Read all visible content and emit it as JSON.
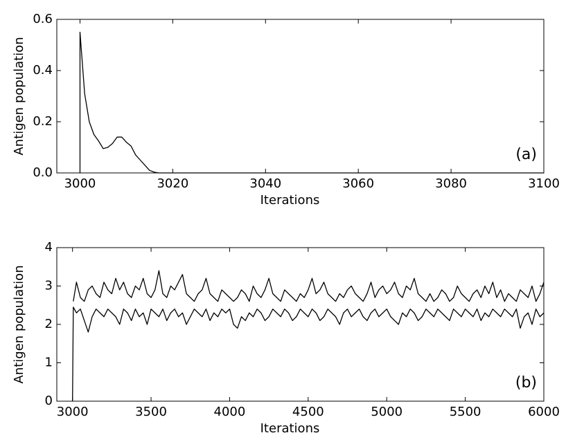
{
  "chart_data": [
    {
      "type": "line",
      "xlabel": "Iterations",
      "ylabel": "Antigen population",
      "annotation": "(a)",
      "x": [
        3000,
        3000,
        3001,
        3002,
        3003,
        3004,
        3005,
        3006,
        3007,
        3008,
        3009,
        3010,
        3011,
        3012,
        3013,
        3014,
        3015,
        3016,
        3017,
        3100
      ],
      "series": [
        {
          "color": "#000000",
          "values": [
            0,
            0.55,
            0.31,
            0.2,
            0.15,
            0.125,
            0.095,
            0.1,
            0.115,
            0.14,
            0.14,
            0.12,
            0.105,
            0.07,
            0.05,
            0.03,
            0.01,
            0.003,
            0,
            0
          ]
        }
      ],
      "xlim": [
        2995,
        3100
      ],
      "xticks": [
        3000,
        3020,
        3040,
        3060,
        3080,
        3100
      ],
      "ylim": [
        0,
        0.6
      ],
      "yticks": [
        {
          "value": 0,
          "label": "0.0"
        },
        0.2,
        0.4,
        0.6
      ]
    },
    {
      "type": "line",
      "xlabel": "Iterations",
      "ylabel": "Antigen population",
      "annotation": "(b)",
      "x": [
        3000,
        3005,
        3025,
        3050,
        3075,
        3100,
        3125,
        3150,
        3175,
        3200,
        3225,
        3250,
        3275,
        3300,
        3325,
        3350,
        3375,
        3400,
        3425,
        3450,
        3475,
        3500,
        3525,
        3550,
        3575,
        3600,
        3625,
        3650,
        3675,
        3700,
        3725,
        3750,
        3775,
        3800,
        3825,
        3850,
        3875,
        3900,
        3925,
        3950,
        3975,
        4000,
        4025,
        4050,
        4075,
        4100,
        4125,
        4150,
        4175,
        4200,
        4225,
        4250,
        4275,
        4300,
        4325,
        4350,
        4375,
        4400,
        4425,
        4450,
        4475,
        4500,
        4525,
        4550,
        4575,
        4600,
        4625,
        4650,
        4675,
        4700,
        4725,
        4750,
        4775,
        4800,
        4825,
        4850,
        4875,
        4900,
        4925,
        4950,
        4975,
        5000,
        5025,
        5050,
        5075,
        5100,
        5125,
        5150,
        5175,
        5200,
        5225,
        5250,
        5275,
        5300,
        5325,
        5350,
        5375,
        5400,
        5425,
        5450,
        5475,
        5500,
        5525,
        5550,
        5575,
        5600,
        5625,
        5650,
        5675,
        5700,
        5725,
        5750,
        5775,
        5800,
        5825,
        5850,
        5875,
        5900,
        5925,
        5950,
        5975,
        6000
      ],
      "series": [
        {
          "color": "#000000",
          "values": [
            null,
            2.6,
            3.1,
            2.7,
            2.6,
            2.9,
            3.0,
            2.8,
            2.7,
            3.1,
            2.9,
            2.8,
            3.2,
            2.9,
            3.1,
            2.8,
            2.7,
            3.0,
            2.9,
            3.2,
            2.8,
            2.7,
            2.9,
            3.4,
            2.8,
            2.7,
            3.0,
            2.9,
            3.1,
            3.3,
            2.8,
            2.7,
            2.6,
            2.8,
            2.9,
            3.2,
            2.8,
            2.7,
            2.6,
            2.9,
            2.8,
            2.7,
            2.6,
            2.7,
            2.9,
            2.8,
            2.6,
            3.0,
            2.8,
            2.7,
            2.9,
            3.2,
            2.8,
            2.7,
            2.6,
            2.9,
            2.8,
            2.7,
            2.6,
            2.8,
            2.7,
            2.9,
            3.2,
            2.8,
            2.9,
            3.1,
            2.8,
            2.7,
            2.6,
            2.8,
            2.7,
            2.9,
            3.0,
            2.8,
            2.7,
            2.6,
            2.8,
            3.1,
            2.7,
            2.9,
            3.0,
            2.8,
            2.9,
            3.1,
            2.8,
            2.7,
            3.0,
            2.9,
            3.2,
            2.8,
            2.7,
            2.6,
            2.8,
            2.6,
            2.7,
            2.9,
            2.8,
            2.6,
            2.7,
            3.0,
            2.8,
            2.7,
            2.6,
            2.8,
            2.9,
            2.7,
            3.0,
            2.8,
            3.1,
            2.7,
            2.9,
            2.6,
            2.8,
            2.7,
            2.6,
            2.9,
            2.8,
            2.7,
            3.0,
            2.6,
            2.8,
            3.1
          ]
        },
        {
          "color": "#000000",
          "values": [
            0,
            2.45,
            2.3,
            2.4,
            2.1,
            1.8,
            2.2,
            2.4,
            2.3,
            2.2,
            2.4,
            2.3,
            2.2,
            2.0,
            2.4,
            2.3,
            2.1,
            2.4,
            2.2,
            2.3,
            2.0,
            2.4,
            2.3,
            2.2,
            2.4,
            2.1,
            2.3,
            2.4,
            2.2,
            2.3,
            2.0,
            2.2,
            2.4,
            2.3,
            2.2,
            2.4,
            2.1,
            2.3,
            2.2,
            2.4,
            2.3,
            2.4,
            2.0,
            1.9,
            2.2,
            2.1,
            2.3,
            2.2,
            2.4,
            2.3,
            2.1,
            2.2,
            2.4,
            2.3,
            2.2,
            2.4,
            2.3,
            2.1,
            2.2,
            2.4,
            2.3,
            2.2,
            2.4,
            2.3,
            2.1,
            2.2,
            2.4,
            2.3,
            2.2,
            2.0,
            2.3,
            2.4,
            2.2,
            2.3,
            2.4,
            2.2,
            2.1,
            2.3,
            2.4,
            2.2,
            2.3,
            2.4,
            2.2,
            2.1,
            2.0,
            2.3,
            2.2,
            2.4,
            2.3,
            2.1,
            2.2,
            2.4,
            2.3,
            2.2,
            2.4,
            2.3,
            2.2,
            2.1,
            2.4,
            2.3,
            2.2,
            2.4,
            2.3,
            2.2,
            2.4,
            2.1,
            2.3,
            2.2,
            2.4,
            2.3,
            2.2,
            2.4,
            2.3,
            2.2,
            2.4,
            1.9,
            2.2,
            2.3,
            2.0,
            2.4,
            2.2,
            2.3
          ]
        }
      ],
      "xlim": [
        2900,
        6000
      ],
      "xticks": [
        3000,
        3500,
        4000,
        4500,
        5000,
        5500,
        6000
      ],
      "ylim": [
        0,
        4
      ],
      "yticks": [
        0,
        1,
        2,
        3,
        4
      ]
    }
  ]
}
